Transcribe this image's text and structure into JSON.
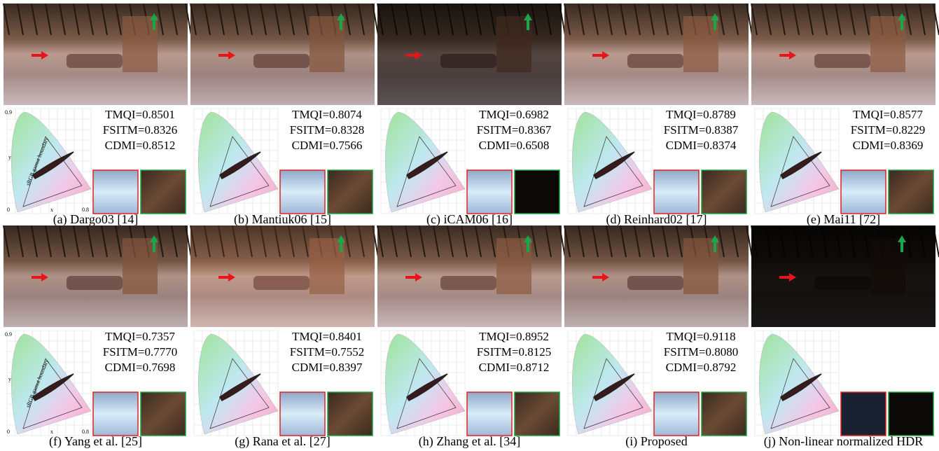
{
  "panels": [
    {
      "caption": "(a) Dargo03 [14]",
      "metrics": [
        "TMQI=0.8501",
        "FSITM=0.8326",
        "CDMI=0.8512"
      ],
      "axis_labels": {
        "y_max": "0.9",
        "y": "y",
        "origin": "0",
        "x": "x",
        "x_max": "0.8",
        "boundary": "sRGB gamut boundary"
      }
    },
    {
      "caption": "(b) Mantiuk06 [15]",
      "metrics": [
        "TMQI=0.8074",
        "FSITM=0.8328",
        "CDMI=0.7566"
      ]
    },
    {
      "caption": "(c) iCAM06 [16]",
      "metrics": [
        "TMQI=0.6982",
        "FSITM=0.8367",
        "CDMI=0.6508"
      ]
    },
    {
      "caption": "(d) Reinhard02 [17]",
      "metrics": [
        "TMQI=0.8789",
        "FSITM=0.8387",
        "CDMI=0.8374"
      ]
    },
    {
      "caption": "(e) Mai11 [72]",
      "metrics": [
        "TMQI=0.8577",
        "FSITM=0.8229",
        "CDMI=0.8369"
      ]
    },
    {
      "caption": "(f) Yang et al. [25]",
      "metrics": [
        "TMQI=0.7357",
        "FSITM=0.7770",
        "CDMI=0.7698"
      ],
      "axis_labels": {
        "y_max": "0.9",
        "y": "y",
        "origin": "0",
        "x": "x",
        "x_max": "0.8",
        "boundary": "sRGB gamut boundary"
      }
    },
    {
      "caption": "(g) Rana et al. [27]",
      "metrics": [
        "TMQI=0.8401",
        "FSITM=0.7552",
        "CDMI=0.8397"
      ]
    },
    {
      "caption": "(h) Zhang et al. [34]",
      "metrics": [
        "TMQI=0.8952",
        "FSITM=0.8125",
        "CDMI=0.8712"
      ]
    },
    {
      "caption": "(i) Proposed",
      "metrics": [
        "TMQI=0.9118",
        "FSITM=0.8080",
        "CDMI=0.8792"
      ]
    },
    {
      "caption": "(j) Non-linear normalized HDR",
      "metrics": []
    }
  ]
}
